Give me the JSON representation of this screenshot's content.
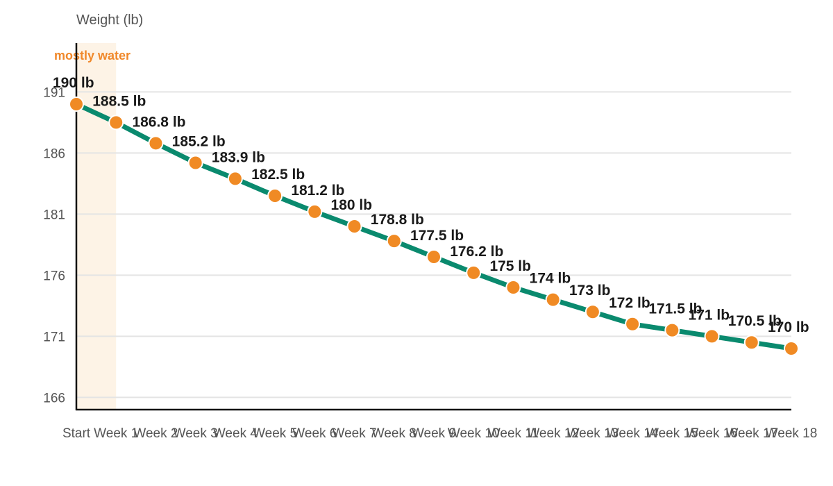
{
  "chart_data": {
    "type": "line",
    "ylabel": "Weight (lb)",
    "categories": [
      "Start",
      "Week 1",
      "Week 2",
      "Week 3",
      "Week 4",
      "Week 5",
      "Week 6",
      "Week 7",
      "Week 8",
      "Week 9",
      "Week 10",
      "Week 11",
      "Week 12",
      "Week 13",
      "Week 14",
      "Week 15",
      "Week 16",
      "Week 17",
      "Week 18"
    ],
    "values": [
      190,
      188.5,
      186.8,
      185.2,
      183.9,
      182.5,
      181.2,
      180,
      178.8,
      177.5,
      176.2,
      175,
      174,
      173,
      172,
      171.5,
      171,
      170.5,
      170
    ],
    "value_labels": [
      "190 lb",
      "188.5 lb",
      "186.8 lb",
      "185.2 lb",
      "183.9 lb",
      "182.5 lb",
      "181.2 lb",
      "180 lb",
      "178.8 lb",
      "177.5 lb",
      "176.2 lb",
      "175 lb",
      "174 lb",
      "173 lb",
      "172 lb",
      "171.5 lb",
      "171 lb",
      "170.5 lb",
      "170 lb"
    ],
    "yticks": [
      166,
      171,
      176,
      181,
      186,
      191
    ],
    "ylim": [
      165,
      195
    ],
    "grid": true,
    "annotation": {
      "text": "mostly water",
      "from": "Start",
      "to": "Week 1",
      "color": "#f0882a",
      "band_color": "#fdf3e6"
    },
    "line_color": "#0a8a6e",
    "marker_color": "#f08a24"
  }
}
